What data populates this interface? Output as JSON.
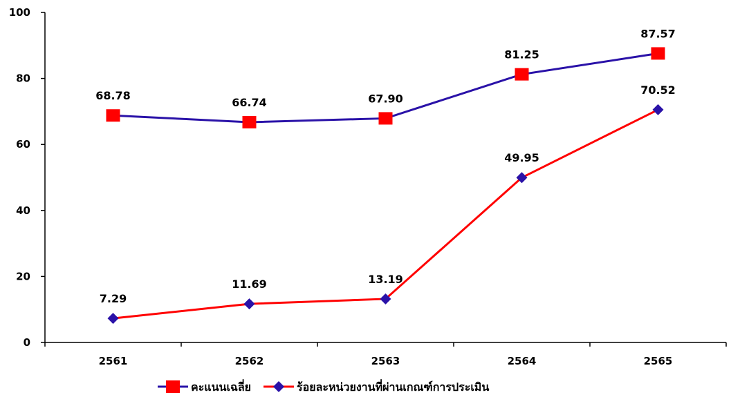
{
  "chart_data": {
    "type": "line",
    "categories": [
      "2561",
      "2562",
      "2563",
      "2564",
      "2565"
    ],
    "ylim": [
      0,
      100
    ],
    "yticks": [
      0,
      20,
      40,
      60,
      80,
      100
    ],
    "grid": false,
    "legend_position": "bottom",
    "series": [
      {
        "name": "คะแนนเฉลี่ย",
        "values": [
          68.78,
          66.74,
          67.9,
          81.25,
          87.57
        ],
        "labels": [
          "68.78",
          "66.74",
          "67.90",
          "81.25",
          "87.57"
        ],
        "line_color": "#2a12a8",
        "marker": "square",
        "marker_color": "#ff0000"
      },
      {
        "name": "ร้อยละหน่วยงานที่ผ่านเกณฑ์การประเมิน",
        "values": [
          7.29,
          11.69,
          13.19,
          49.95,
          70.52
        ],
        "labels": [
          "7.29",
          "11.69",
          "13.19",
          "49.95",
          "70.52"
        ],
        "line_color": "#ff0000",
        "marker": "diamond",
        "marker_color": "#2a12a8"
      }
    ]
  }
}
